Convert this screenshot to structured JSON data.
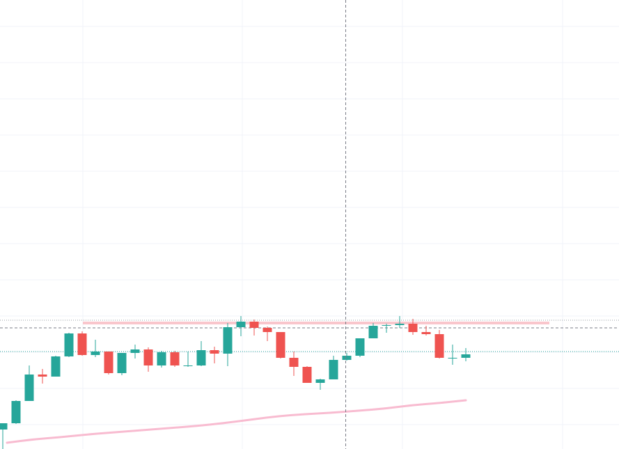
{
  "chart_data": {
    "type": "candlestick",
    "title": "",
    "xlabel": "",
    "ylabel": "",
    "ylim": [
      0,
      645
    ],
    "grid": true,
    "candles": [
      {
        "o": 28,
        "h": 37,
        "l": 0,
        "c": 37
      },
      {
        "o": 37,
        "h": 70,
        "l": 36,
        "c": 69
      },
      {
        "o": 69,
        "h": 120,
        "l": 69,
        "c": 107
      },
      {
        "o": 107,
        "h": 115,
        "l": 94,
        "c": 104
      },
      {
        "o": 104,
        "h": 134,
        "l": 104,
        "c": 133
      },
      {
        "o": 133,
        "h": 167,
        "l": 132,
        "c": 166
      },
      {
        "o": 166,
        "h": 169,
        "l": 134,
        "c": 135
      },
      {
        "o": 135,
        "h": 157,
        "l": 132,
        "c": 140
      },
      {
        "o": 140,
        "h": 140,
        "l": 107,
        "c": 109
      },
      {
        "o": 109,
        "h": 138,
        "l": 106,
        "c": 138
      },
      {
        "o": 138,
        "h": 150,
        "l": 130,
        "c": 143
      },
      {
        "o": 143,
        "h": 146,
        "l": 111,
        "c": 120
      },
      {
        "o": 120,
        "h": 141,
        "l": 117,
        "c": 139
      },
      {
        "o": 139,
        "h": 141,
        "l": 118,
        "c": 120
      },
      {
        "o": 120,
        "h": 140,
        "l": 118,
        "c": 120
      },
      {
        "o": 120,
        "h": 155,
        "l": 119,
        "c": 142
      },
      {
        "o": 142,
        "h": 147,
        "l": 123,
        "c": 137
      },
      {
        "o": 137,
        "h": 181,
        "l": 119,
        "c": 175
      },
      {
        "o": 175,
        "h": 191,
        "l": 162,
        "c": 183
      },
      {
        "o": 183,
        "h": 186,
        "l": 163,
        "c": 174
      },
      {
        "o": 174,
        "h": 176,
        "l": 155,
        "c": 168
      },
      {
        "o": 168,
        "h": 168,
        "l": 130,
        "c": 131
      },
      {
        "o": 131,
        "h": 140,
        "l": 105,
        "c": 118
      },
      {
        "o": 118,
        "h": 119,
        "l": 95,
        "c": 95
      },
      {
        "o": 95,
        "h": 101,
        "l": 85,
        "c": 100
      },
      {
        "o": 100,
        "h": 134,
        "l": 100,
        "c": 128
      },
      {
        "o": 128,
        "h": 138,
        "l": 127,
        "c": 134
      },
      {
        "o": 134,
        "h": 159,
        "l": 132,
        "c": 159
      },
      {
        "o": 159,
        "h": 181,
        "l": 159,
        "c": 177
      },
      {
        "o": 177,
        "h": 180,
        "l": 167,
        "c": 178
      },
      {
        "o": 178,
        "h": 191,
        "l": 174,
        "c": 180
      },
      {
        "o": 180,
        "h": 187,
        "l": 164,
        "c": 168
      },
      {
        "o": 168,
        "h": 177,
        "l": 163,
        "c": 165
      },
      {
        "o": 165,
        "h": 171,
        "l": 130,
        "c": 131
      },
      {
        "o": 131,
        "h": 150,
        "l": 121,
        "c": 131
      },
      {
        "o": 131,
        "h": 145,
        "l": 126,
        "c": 136
      }
    ],
    "moving_average": [
      9,
      14,
      17,
      21,
      24,
      27,
      30,
      33,
      37,
      42,
      47,
      50,
      52,
      55,
      58,
      63,
      66,
      70
    ],
    "resistance_zone": [
      179,
      183
    ],
    "horizontal_levels": [
      185,
      174,
      140
    ],
    "crosshair": {
      "candle_index": 26,
      "value": 174
    },
    "colors": {
      "up": "#26a69a",
      "down": "#ef5350",
      "moving_average": "#f8bbd0",
      "zone": "#f9c6cc",
      "grid": "#f0f3fa"
    }
  }
}
